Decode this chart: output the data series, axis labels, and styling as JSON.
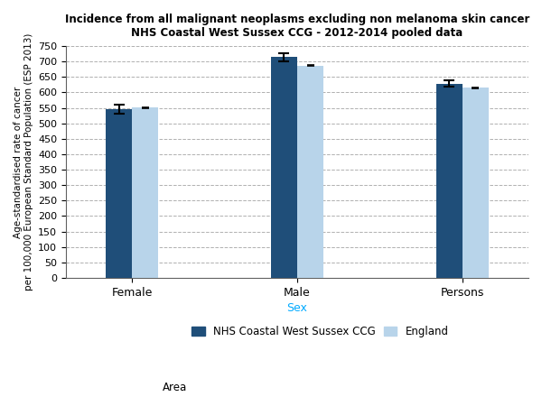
{
  "title_line1": "Incidence from all malignant neoplasms excluding non melanoma skin cancer",
  "title_line2": "NHS Coastal West Sussex CCG - 2012-2014 pooled data",
  "categories": [
    "Female",
    "Male",
    "Persons"
  ],
  "ccg_values": [
    546,
    714,
    628
  ],
  "eng_values": [
    551,
    687,
    615
  ],
  "ccg_errors": [
    15,
    14,
    10
  ],
  "eng_errors": [
    2,
    2,
    1.5
  ],
  "ccg_color": "#1f4e79",
  "eng_color": "#b8d4ea",
  "xlabel": "Sex",
  "ylabel": "Age-standardised rate of cancer\nper 100,000 European Standard Population (ESP 2013)",
  "ylim": [
    0,
    750
  ],
  "yticks": [
    0,
    50,
    100,
    150,
    200,
    250,
    300,
    350,
    400,
    450,
    500,
    550,
    600,
    650,
    700,
    750
  ],
  "legend_area_label": "Area",
  "legend_ccg_label": "NHS Coastal West Sussex CCG",
  "legend_eng_label": "England",
  "xlabel_color": "#00aaff",
  "bar_width": 0.32,
  "group_centers": [
    1.0,
    3.0,
    5.0
  ]
}
